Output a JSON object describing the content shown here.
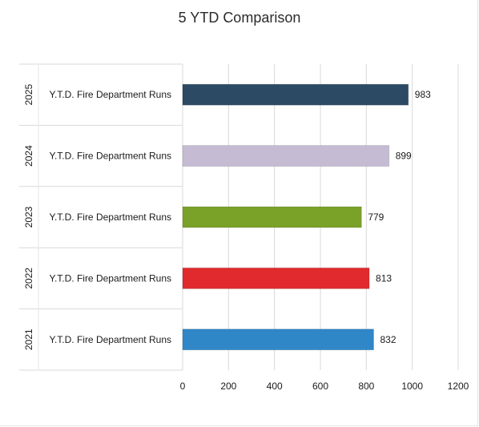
{
  "chart_data": {
    "type": "bar",
    "orientation": "horizontal",
    "title": "5 YTD Comparison",
    "xlabel": "",
    "ylabel": "",
    "xlim": [
      0,
      1200
    ],
    "xticks": [
      0,
      200,
      400,
      600,
      800,
      1000,
      1200
    ],
    "grid": true,
    "legend": "none",
    "categories": [
      {
        "year": "2025",
        "label": "Y.T.D. Fire Department Runs",
        "value": 983,
        "color": "#2c4a63"
      },
      {
        "year": "2024",
        "label": "Y.T.D. Fire Department Runs",
        "value": 899,
        "color": "#c5bcd3"
      },
      {
        "year": "2023",
        "label": "Y.T.D. Fire Department Runs",
        "value": 779,
        "color": "#7aa228"
      },
      {
        "year": "2022",
        "label": "Y.T.D. Fire Department Runs",
        "value": 813,
        "color": "#e02a2e"
      },
      {
        "year": "2021",
        "label": "Y.T.D. Fire Department Runs",
        "value": 832,
        "color": "#2f87c8"
      }
    ]
  }
}
